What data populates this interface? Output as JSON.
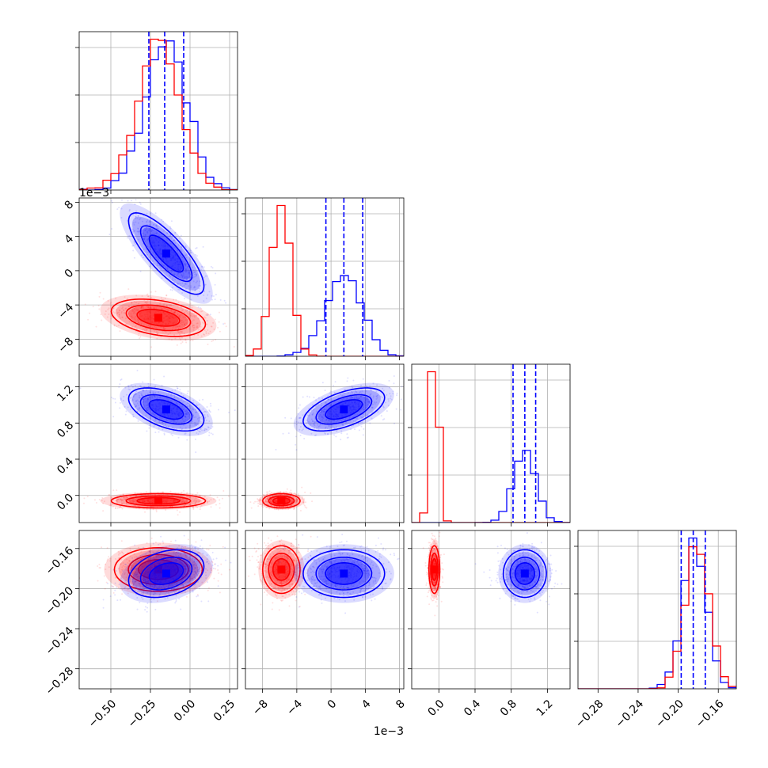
{
  "chart_data": {
    "type": "corner",
    "grid": true,
    "series": [
      {
        "name": "",
        "color": "#0000ff"
      },
      {
        "name": "",
        "color": "#ff0000"
      }
    ],
    "parameters": [
      {
        "key": "p0",
        "range": [
          -0.7,
          0.3
        ],
        "ticks": [
          -0.5,
          -0.25,
          0.0,
          0.25
        ],
        "tick_labels": [
          "−0.50",
          "−0.25",
          "0.00",
          "0.25"
        ],
        "multiplier": ""
      },
      {
        "key": "p1",
        "range": [
          -0.01,
          0.0085
        ],
        "ticks": [
          -0.008,
          -0.004,
          0.0,
          0.004,
          0.008
        ],
        "tick_labels": [
          "−8",
          "−4",
          "0",
          "4",
          "8"
        ],
        "multiplier": "1e−3"
      },
      {
        "key": "p2",
        "range": [
          -0.3,
          1.45
        ],
        "ticks": [
          0.0,
          0.4,
          0.8,
          1.2
        ],
        "tick_labels": [
          "0.0",
          "0.4",
          "0.8",
          "1.2"
        ],
        "multiplier": ""
      },
      {
        "key": "p3",
        "range": [
          -0.3,
          -0.142
        ],
        "ticks": [
          -0.28,
          -0.24,
          -0.2,
          -0.16
        ],
        "tick_labels": [
          "−0.28",
          "−0.24",
          "−0.20",
          "−0.16"
        ],
        "multiplier": ""
      }
    ],
    "marginals": [
      {
        "param": 0,
        "blue": {
          "mean": -0.15,
          "sd": 0.13,
          "quantiles": [
            -0.26,
            -0.16,
            -0.04
          ]
        },
        "red": {
          "mean": -0.2,
          "sd": 0.13
        }
      },
      {
        "param": 1,
        "blue": {
          "mean": 0.0015,
          "sd": 0.0021,
          "quantiles": [
            -0.0006,
            0.0015,
            0.0037
          ]
        },
        "red": {
          "mean": -0.0058,
          "sd": 0.0011
        }
      },
      {
        "param": 2,
        "blue": {
          "mean": 0.95,
          "sd": 0.12,
          "quantiles": [
            0.82,
            0.95,
            1.07
          ]
        },
        "red": {
          "mean": -0.05,
          "sd": 0.04
        }
      },
      {
        "param": 3,
        "blue": {
          "mean": -0.184,
          "sd": 0.012,
          "quantiles": [
            -0.197,
            -0.185,
            -0.173
          ]
        },
        "red": {
          "mean": -0.181,
          "sd": 0.012
        }
      }
    ],
    "joint": [
      {
        "x": 0,
        "y": 1,
        "blue": {
          "center": [
            -0.15,
            0.002
          ],
          "sd": [
            0.12,
            0.0024
          ],
          "rho": -0.8
        },
        "red": {
          "center": [
            -0.2,
            -0.0055
          ],
          "sd": [
            0.15,
            0.0011
          ],
          "rho": -0.35
        }
      },
      {
        "x": 0,
        "y": 2,
        "blue": {
          "center": [
            -0.15,
            0.95
          ],
          "sd": [
            0.12,
            0.12
          ],
          "rho": -0.5
        },
        "red": {
          "center": [
            -0.2,
            -0.06
          ],
          "sd": [
            0.15,
            0.04
          ],
          "rho": 0.0
        }
      },
      {
        "x": 0,
        "y": 3,
        "blue": {
          "center": [
            -0.15,
            -0.185
          ],
          "sd": [
            0.12,
            0.012
          ],
          "rho": 0.3
        },
        "red": {
          "center": [
            -0.2,
            -0.181
          ],
          "sd": [
            0.14,
            0.011
          ],
          "rho": 0.0
        }
      },
      {
        "x": 1,
        "y": 2,
        "blue": {
          "center": [
            0.0015,
            0.95
          ],
          "sd": [
            0.0024,
            0.12
          ],
          "rho": 0.55
        },
        "red": {
          "center": [
            -0.0058,
            -0.06
          ],
          "sd": [
            0.0011,
            0.04
          ],
          "rho": 0.0
        }
      },
      {
        "x": 1,
        "y": 3,
        "blue": {
          "center": [
            0.0015,
            -0.185
          ],
          "sd": [
            0.0024,
            0.012
          ],
          "rho": 0.0
        },
        "red": {
          "center": [
            -0.0058,
            -0.181
          ],
          "sd": [
            0.0011,
            0.012
          ],
          "rho": 0.0
        }
      },
      {
        "x": 2,
        "y": 3,
        "blue": {
          "center": [
            0.95,
            -0.185
          ],
          "sd": [
            0.12,
            0.012
          ],
          "rho": 0.0
        },
        "red": {
          "center": [
            -0.05,
            -0.181
          ],
          "sd": [
            0.03,
            0.012
          ],
          "rho": 0.0
        }
      }
    ]
  }
}
